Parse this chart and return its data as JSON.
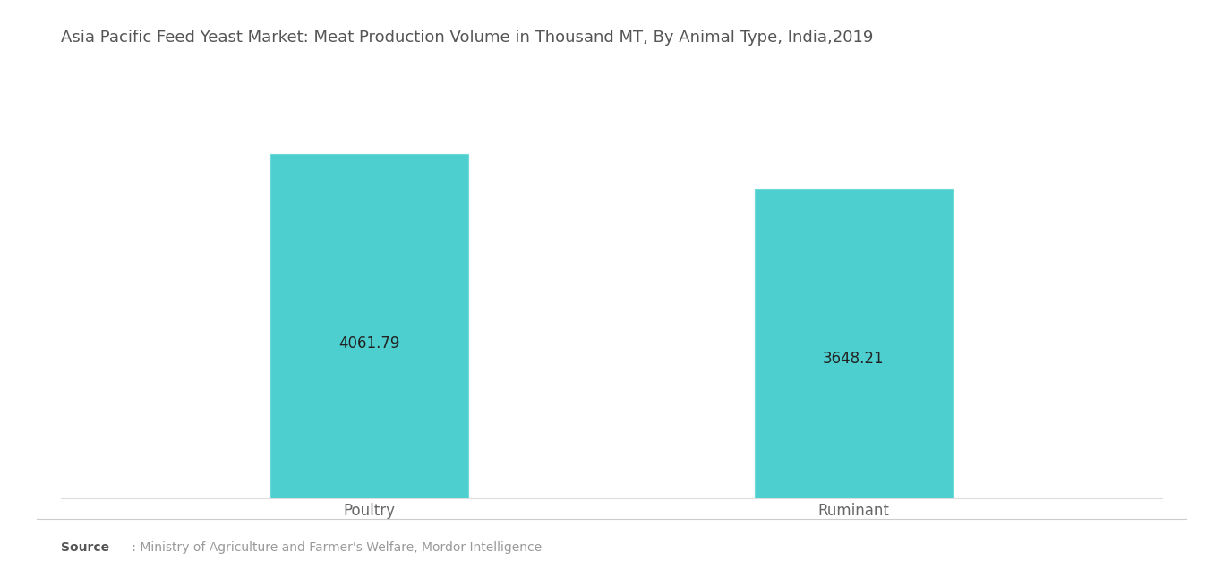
{
  "title": "Asia Pacific Feed Yeast Market: Meat Production Volume in Thousand MT, By Animal Type, India,2019",
  "categories": [
    "Poultry",
    "Ruminant"
  ],
  "values": [
    4061.79,
    3648.21
  ],
  "bar_color": "#4ECFCF",
  "bar_edge_color": "#6DDADA",
  "label_color": "#222222",
  "label_fontsize": 12,
  "title_fontsize": 13,
  "title_color": "#555555",
  "xlabel_fontsize": 12,
  "xlabel_color": "#666666",
  "source_bold": "Source",
  "source_text": " : Ministry of Agriculture and Farmer's Welfare, Mordor Intelligence",
  "source_fontsize": 10,
  "source_color": "#999999",
  "source_bold_color": "#555555",
  "background_color": "#ffffff",
  "ylim": [
    0,
    4700
  ],
  "bar_width": 0.18,
  "positions": [
    0.28,
    0.72
  ],
  "xlim": [
    0,
    1
  ]
}
